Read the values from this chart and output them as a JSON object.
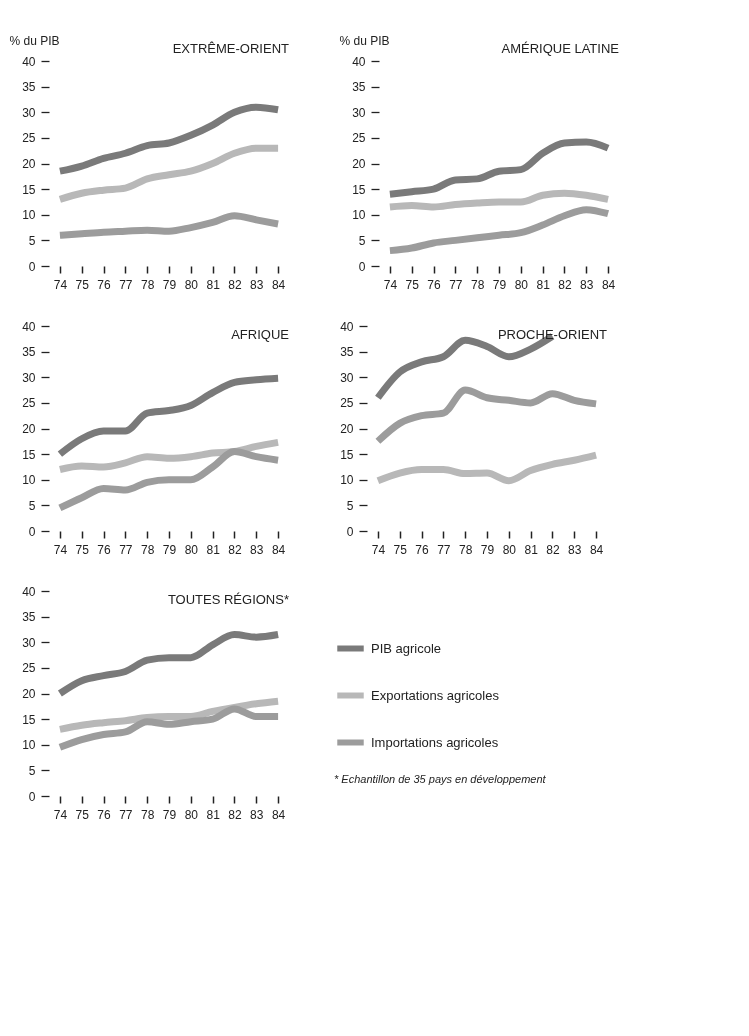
{
  "chart_data": [
    {
      "type": "line",
      "title": "EXTRÊME-ORIENT",
      "ylabel": "% du PIB",
      "categories": [
        "74",
        "75",
        "76",
        "77",
        "78",
        "79",
        "80",
        "81",
        "82",
        "83",
        "84"
      ],
      "ylim": [
        0,
        40
      ],
      "yticks": [
        0,
        5,
        10,
        15,
        20,
        25,
        30,
        35,
        40
      ],
      "grid": false,
      "series": [
        {
          "color": "#7a7a7a",
          "values": [
            18.5,
            19.5,
            21,
            22,
            23.5,
            24,
            25.5,
            27.5,
            30,
            31,
            30.5
          ]
        },
        {
          "color": "#b8b8b8",
          "values": [
            13,
            14.2,
            14.8,
            15.2,
            17,
            17.8,
            18.5,
            20,
            22,
            23,
            23
          ]
        },
        {
          "color": "#9c9c9c",
          "values": [
            6,
            6.3,
            6.6,
            6.8,
            7,
            6.8,
            7.5,
            8.5,
            9.8,
            9,
            8.2
          ]
        }
      ]
    },
    {
      "type": "line",
      "title": "AMÉRIQUE LATINE",
      "ylabel": "% du PIB",
      "categories": [
        "74",
        "75",
        "76",
        "77",
        "78",
        "79",
        "80",
        "81",
        "82",
        "83",
        "84"
      ],
      "ylim": [
        0,
        40
      ],
      "yticks": [
        0,
        5,
        10,
        15,
        20,
        25,
        30,
        35,
        40
      ],
      "grid": false,
      "series": [
        {
          "color": "#7a7a7a",
          "values": [
            14,
            14.5,
            15,
            16.8,
            17,
            18.5,
            18.8,
            22,
            24,
            24.2,
            23
          ]
        },
        {
          "color": "#b8b8b8",
          "values": [
            11.5,
            11.8,
            11.5,
            12,
            12.3,
            12.5,
            12.5,
            13.8,
            14.2,
            13.8,
            13
          ]
        },
        {
          "color": "#9c9c9c",
          "values": [
            3,
            3.5,
            4.5,
            5,
            5.5,
            6,
            6.5,
            8,
            9.8,
            11,
            10.2
          ]
        }
      ]
    },
    {
      "type": "line",
      "title": "AFRIQUE",
      "categories": [
        "74",
        "75",
        "76",
        "77",
        "78",
        "79",
        "80",
        "81",
        "82",
        "83",
        "84"
      ],
      "ylim": [
        0,
        40
      ],
      "yticks": [
        0,
        5,
        10,
        15,
        20,
        25,
        30,
        35,
        40
      ],
      "grid": false,
      "series": [
        {
          "color": "#7a7a7a",
          "values": [
            15,
            18,
            19.5,
            19.5,
            23,
            23.5,
            24.5,
            27,
            29,
            29.5,
            29.8
          ]
        },
        {
          "color": "#b8b8b8",
          "values": [
            12,
            12.7,
            12.5,
            13.3,
            14.5,
            14.2,
            14.5,
            15.2,
            15.5,
            16.5,
            17.3
          ]
        },
        {
          "color": "#9c9c9c",
          "values": [
            4.5,
            6.5,
            8.3,
            8,
            9.5,
            10,
            10,
            12.5,
            15.5,
            14.5,
            13.8
          ]
        }
      ]
    },
    {
      "type": "line",
      "title": "PROCHE-ORIENT",
      "categories": [
        "74",
        "75",
        "76",
        "77",
        "78",
        "79",
        "80",
        "81",
        "82",
        "83",
        "84"
      ],
      "ylim": [
        0,
        40
      ],
      "yticks": [
        0,
        5,
        10,
        15,
        20,
        25,
        30,
        35,
        40
      ],
      "grid": false,
      "series": [
        {
          "color": "#7a7a7a",
          "values": [
            26,
            31,
            33,
            34,
            37.2,
            36,
            34,
            35.5,
            38,
            null,
            null
          ]
        },
        {
          "color": "#b8b8b8",
          "values": [
            9.8,
            11.3,
            12,
            12,
            11.2,
            11.3,
            9.8,
            11.8,
            13,
            13.8,
            14.8
          ]
        },
        {
          "color": "#9c9c9c",
          "values": [
            17.5,
            21,
            22.5,
            23,
            27.5,
            26,
            25.5,
            25,
            26.8,
            25.5,
            24.8
          ]
        }
      ]
    },
    {
      "type": "line",
      "title": "TOUTES RÉGIONS*",
      "categories": [
        "74",
        "75",
        "76",
        "77",
        "78",
        "79",
        "80",
        "81",
        "82",
        "83",
        "84"
      ],
      "ylim": [
        0,
        40
      ],
      "yticks": [
        0,
        5,
        10,
        15,
        20,
        25,
        30,
        35,
        40
      ],
      "grid": false,
      "legend": "right",
      "annotations": [
        "* Echantillon de 35 pays en développement"
      ],
      "series": [
        {
          "name": "PIB agricole",
          "color": "#7a7a7a",
          "values": [
            20,
            22.5,
            23.5,
            24.3,
            26.5,
            27,
            27,
            29.5,
            31.5,
            31,
            31.5
          ]
        },
        {
          "name": "Exportations agricoles",
          "color": "#b8b8b8",
          "values": [
            13,
            13.8,
            14.3,
            14.7,
            15.3,
            15.5,
            15.5,
            16.5,
            17.3,
            18,
            18.5
          ]
        },
        {
          "name": "Importations agricoles",
          "color": "#9c9c9c",
          "values": [
            9.5,
            11,
            12,
            12.5,
            14.5,
            14,
            14.5,
            15,
            17,
            15.5,
            15.5
          ]
        }
      ]
    }
  ]
}
